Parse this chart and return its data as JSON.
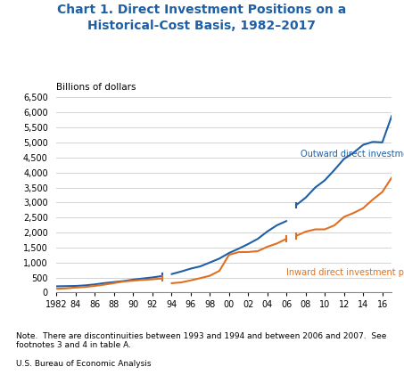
{
  "title": "Chart 1. Direct Investment Positions on a\nHistorical-Cost Basis, 1982–2017",
  "billions_label": "Billions of dollars",
  "note": "Note.  There are discontinuities between 1993 and 1994 and between 2006 and 2007.  See\nfootnotes 3 and 4 in table A.",
  "source": "U.S. Bureau of Economic Analysis",
  "outward_label": "Outward direct investment position",
  "inward_label": "Inward direct investment position",
  "outward_color": "#1f5fa6",
  "inward_color": "#e07020",
  "title_color": "#1f5fa6",
  "ylim": [
    0,
    6500
  ],
  "yticks": [
    0,
    500,
    1000,
    1500,
    2000,
    2500,
    3000,
    3500,
    4000,
    4500,
    5000,
    5500,
    6000,
    6500
  ],
  "outward_segment1_years": [
    1982,
    1983,
    1984,
    1985,
    1986,
    1987,
    1988,
    1989,
    1990,
    1991,
    1992,
    1993
  ],
  "outward_segment1_values": [
    207,
    212,
    218,
    238,
    270,
    314,
    347,
    382,
    430,
    467,
    502,
    548
  ],
  "outward_segment2_years": [
    1994,
    1995,
    1996,
    1997,
    1998,
    1999,
    2000,
    2001,
    2002,
    2003,
    2004,
    2005,
    2006
  ],
  "outward_segment2_values": [
    613,
    699,
    796,
    871,
    1000,
    1132,
    1316,
    1460,
    1616,
    1788,
    2034,
    2241,
    2384
  ],
  "outward_segment3_years": [
    2007,
    2008,
    2009,
    2010,
    2011,
    2012,
    2013,
    2014,
    2015,
    2016,
    2017
  ],
  "outward_segment3_values": [
    2909,
    3162,
    3499,
    3741,
    4085,
    4453,
    4660,
    4923,
    5020,
    5004,
    5900
  ],
  "inward_segment1_years": [
    1982,
    1983,
    1984,
    1985,
    1986,
    1987,
    1988,
    1989,
    1990,
    1991,
    1992,
    1993
  ],
  "inward_segment1_values": [
    124,
    137,
    165,
    185,
    220,
    263,
    315,
    368,
    395,
    420,
    440,
    467
  ],
  "inward_segment2_years": [
    1994,
    1995,
    1996,
    1997,
    1998,
    1999,
    2000,
    2001,
    2002,
    2003,
    2004,
    2005,
    2006
  ],
  "inward_segment2_values": [
    311,
    336,
    404,
    478,
    558,
    723,
    1257,
    1346,
    1350,
    1378,
    1525,
    1634,
    1790
  ],
  "inward_segment3_years": [
    2007,
    2008,
    2009,
    2010,
    2011,
    2012,
    2013,
    2014,
    2015,
    2016,
    2017
  ],
  "inward_segment3_values": [
    1886,
    2028,
    2104,
    2105,
    2238,
    2519,
    2651,
    2810,
    3097,
    3350,
    3840
  ]
}
